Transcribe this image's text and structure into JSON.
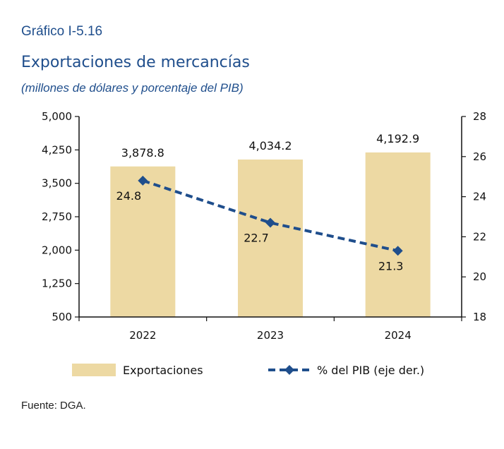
{
  "figure": {
    "label": "Gráfico I-5.16",
    "title": "Exportaciones de mercancías",
    "subtitle": "(millones de dólares y porcentaje del PIB)",
    "source": "Fuente: DGA."
  },
  "colors": {
    "bar": "#edd9a3",
    "line": "#1f4e8c",
    "axis": "#111111",
    "title": "#1f4e8c"
  },
  "chart_data": {
    "type": "bar",
    "categories": [
      "2022",
      "2023",
      "2024"
    ],
    "series": [
      {
        "name": "Exportaciones",
        "type": "bar",
        "axis": "left",
        "values": [
          3878.8,
          4034.2,
          4192.9
        ],
        "labels": [
          "3,878.8",
          "4,034.2",
          "4,192.9"
        ]
      },
      {
        "name": "% del PIB (eje der.)",
        "type": "line",
        "style": "dashed",
        "marker": "diamond",
        "axis": "right",
        "values": [
          24.8,
          22.7,
          21.3
        ],
        "labels": [
          "24.8",
          "22.7",
          "21.3"
        ]
      }
    ],
    "y_left": {
      "min": 500,
      "max": 5000,
      "ticks": [
        500,
        1250,
        2000,
        2750,
        3500,
        4250,
        5000
      ],
      "tick_labels": [
        "500",
        "1,250",
        "2,000",
        "2,750",
        "3,500",
        "4,250",
        "5,000"
      ]
    },
    "y_right": {
      "min": 18,
      "max": 28,
      "ticks": [
        18,
        20,
        22,
        24,
        26,
        28
      ],
      "tick_labels": [
        "18",
        "20",
        "22",
        "24",
        "26",
        "28"
      ]
    },
    "grid": false,
    "legend_position": "bottom"
  }
}
